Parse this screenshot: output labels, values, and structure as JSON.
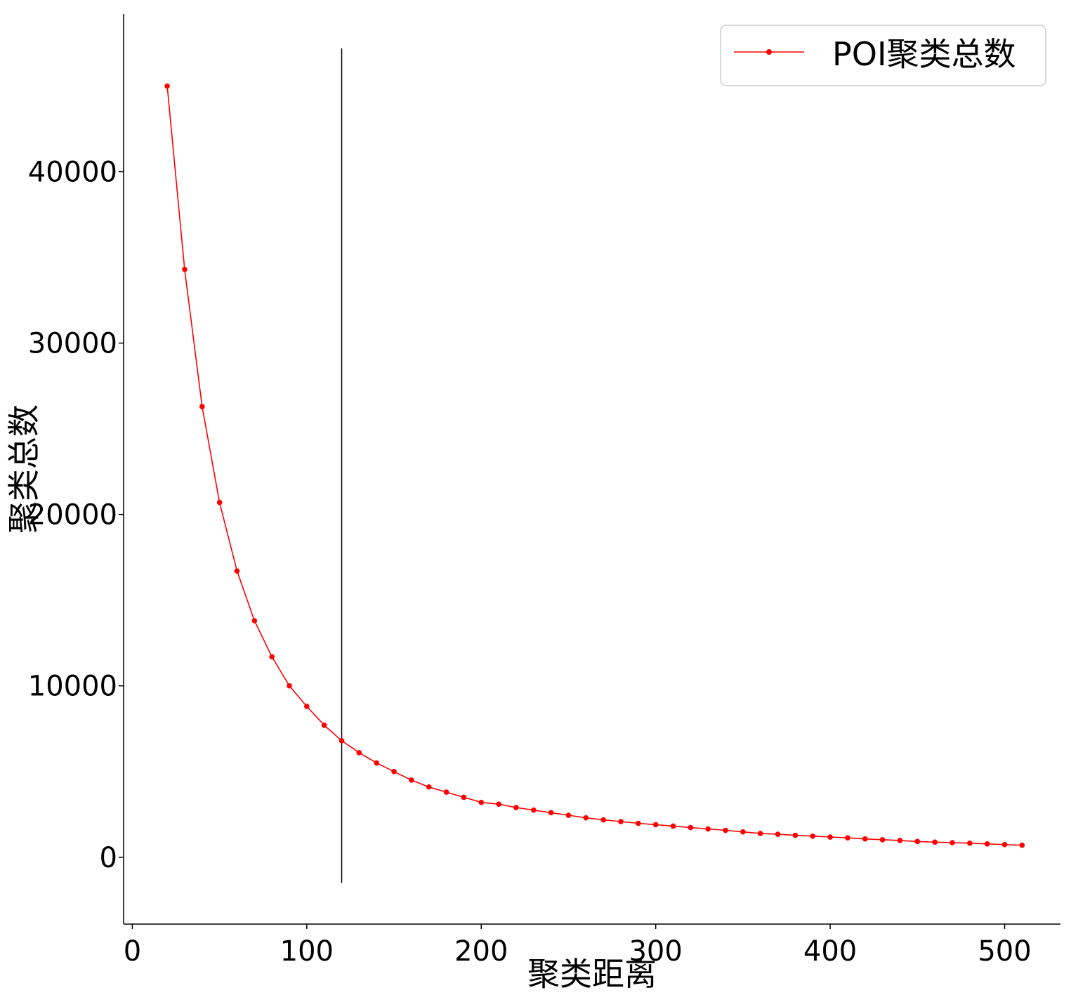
{
  "chart_data": {
    "type": "line",
    "xlabel": "聚类距离",
    "ylabel": "聚类总数",
    "xlim": [
      -5,
      532
    ],
    "ylim": [
      -3900,
      49200
    ],
    "xticks": [
      0,
      100,
      200,
      300,
      400,
      500
    ],
    "yticks": [
      0,
      10000,
      20000,
      30000,
      40000
    ],
    "grid": false,
    "legend_position": "top-right",
    "reference_line": {
      "x": 120,
      "y_from": -1500,
      "y_to": 47200,
      "color": "#000000"
    },
    "series": [
      {
        "name": "POI聚类总数",
        "color": "#ff0000",
        "marker": "circle",
        "x": [
          20,
          30,
          40,
          50,
          60,
          70,
          80,
          90,
          100,
          110,
          120,
          130,
          140,
          150,
          160,
          170,
          180,
          190,
          200,
          210,
          220,
          230,
          240,
          250,
          260,
          270,
          280,
          290,
          300,
          310,
          320,
          330,
          340,
          350,
          360,
          370,
          380,
          390,
          400,
          410,
          420,
          430,
          440,
          450,
          460,
          470,
          480,
          490,
          500,
          510
        ],
        "y": [
          45000,
          34300,
          26300,
          20700,
          16700,
          13800,
          11700,
          10000,
          8800,
          7700,
          6800,
          6100,
          5500,
          5000,
          4500,
          4100,
          3800,
          3500,
          3200,
          3100,
          2900,
          2750,
          2600,
          2450,
          2300,
          2180,
          2080,
          1980,
          1900,
          1820,
          1730,
          1650,
          1570,
          1480,
          1390,
          1340,
          1280,
          1230,
          1180,
          1130,
          1070,
          1020,
          980,
          920,
          880,
          850,
          820,
          780,
          740,
          700
        ]
      }
    ]
  }
}
